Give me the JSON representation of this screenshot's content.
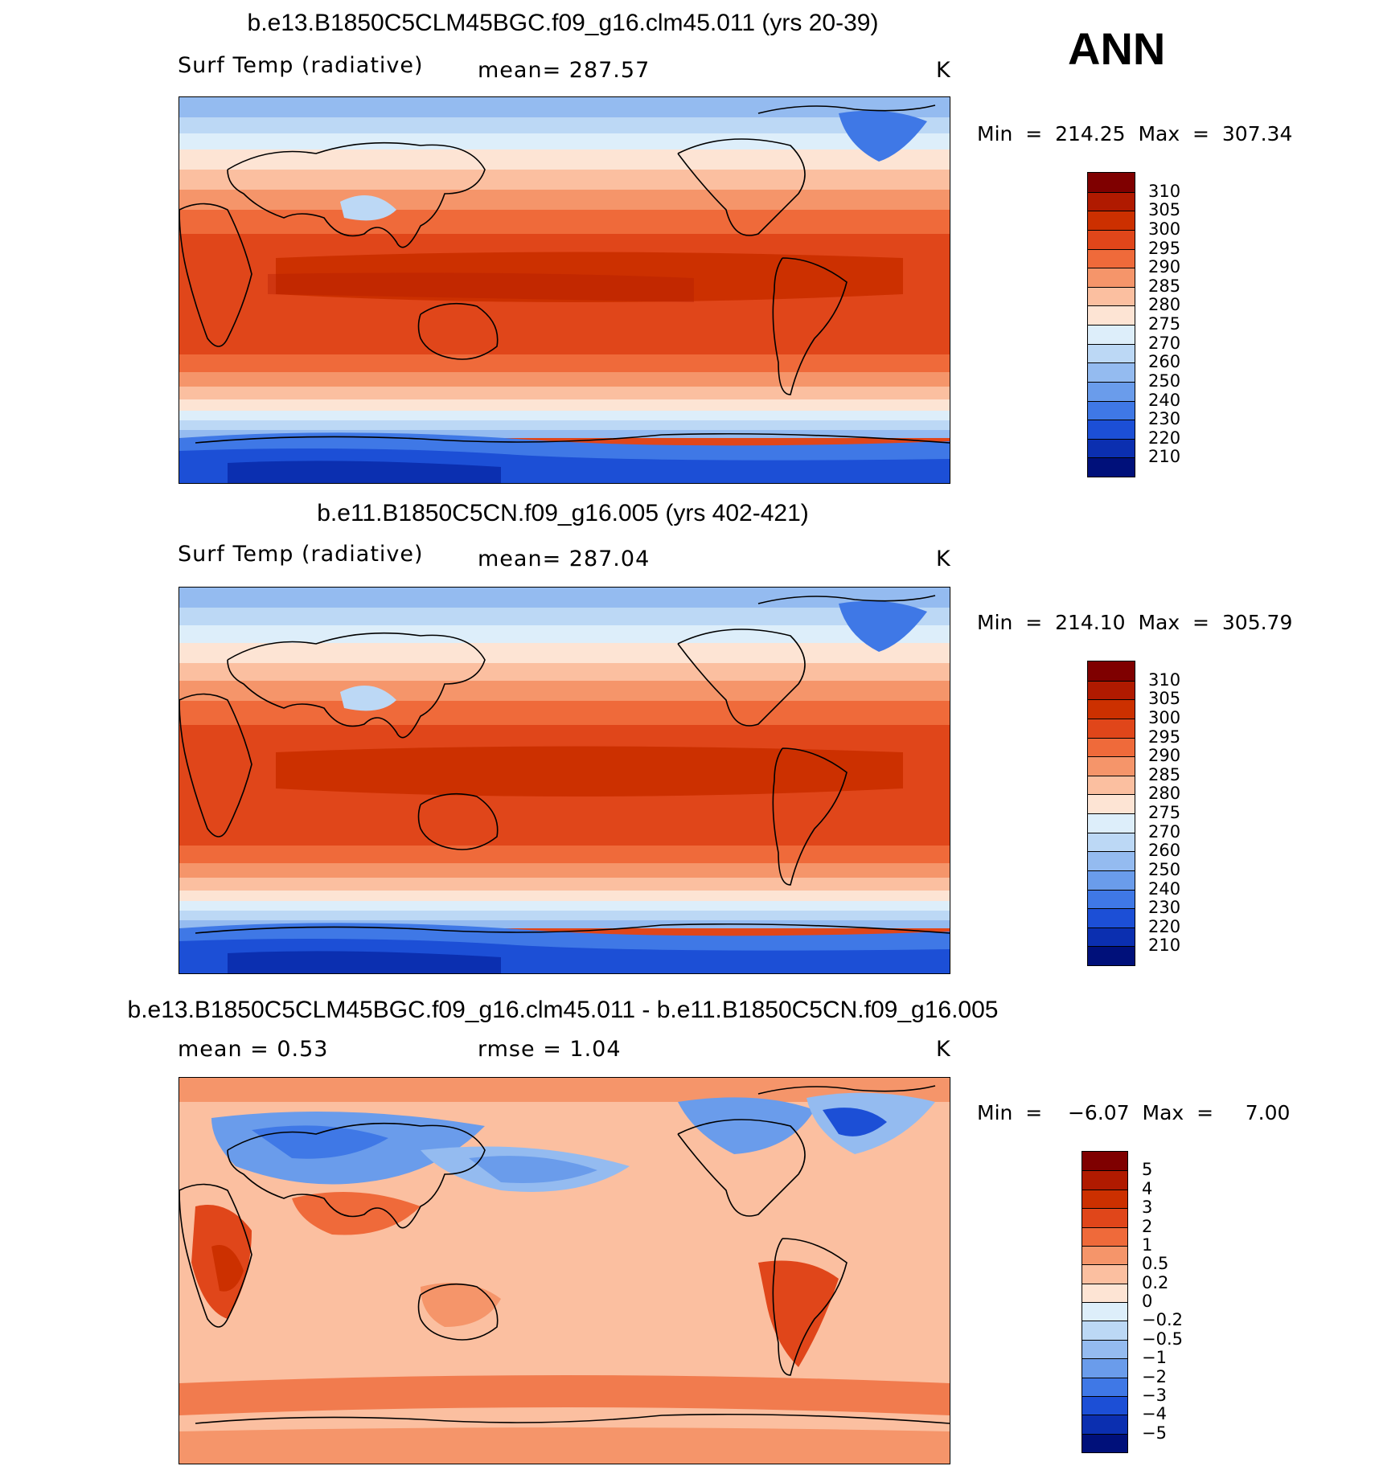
{
  "season": "ANN",
  "panels": [
    {
      "id": "top",
      "title": "b.e13.B1850C5CLM45BGC.f09_g16.clm45.011 (yrs 20-39)",
      "variable": "Surf Temp (radiative)",
      "stat1": "mean= 287.57",
      "stat2": "",
      "units": "K",
      "minmax": "Min  =  214.25  Max  =  307.34",
      "type": "absolute"
    },
    {
      "id": "mid",
      "title": "b.e11.B1850C5CN.f09_g16.005 (yrs 402-421)",
      "variable": "Surf Temp (radiative)",
      "stat1": "mean= 287.04",
      "stat2": "",
      "units": "K",
      "minmax": "Min  =  214.10  Max  =  305.79",
      "type": "absolute"
    },
    {
      "id": "diff",
      "title": "b.e13.B1850C5CLM45BGC.f09_g16.clm45.011 - b.e11.B1850C5CN.f09_g16.005",
      "variable": "",
      "stat1": "mean =     0.53",
      "stat2": "rmse =     1.04",
      "units": "K",
      "minmax": "Min  =    −6.07  Max  =     7.00",
      "type": "difference"
    }
  ],
  "colorbars": {
    "absolute": {
      "labels": [
        "310",
        "305",
        "300",
        "295",
        "290",
        "285",
        "280",
        "275",
        "270",
        "260",
        "250",
        "240",
        "230",
        "220",
        "210"
      ],
      "colors": [
        "#7f0000",
        "#b01a00",
        "#cc3000",
        "#e0461a",
        "#ef6a3a",
        "#f5956a",
        "#fbbfa0",
        "#fde4d4",
        "#ddeefa",
        "#bcd8f5",
        "#94bbf0",
        "#6a9ceb",
        "#3f78e6",
        "#1c4fd6",
        "#0b2fb0",
        "#00107a"
      ]
    },
    "difference": {
      "labels": [
        "5",
        "4",
        "3",
        "2",
        "1",
        "0.5",
        "0.2",
        "0",
        "−0.2",
        "−0.5",
        "−1",
        "−2",
        "−3",
        "−4",
        "−5"
      ],
      "colors": [
        "#7f0000",
        "#b01a00",
        "#cc3000",
        "#e0461a",
        "#ef6a3a",
        "#f5956a",
        "#fbbfa0",
        "#fde4d4",
        "#ddeefa",
        "#bcd8f5",
        "#94bbf0",
        "#6a9ceb",
        "#3f78e6",
        "#1c4fd6",
        "#0b2fb0",
        "#00107a"
      ]
    }
  }
}
